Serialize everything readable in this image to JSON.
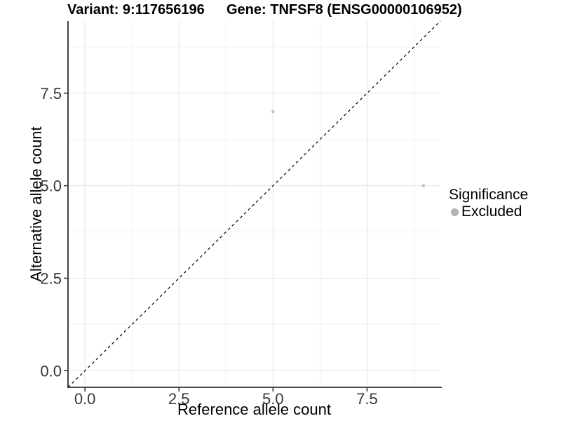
{
  "figure": {
    "titles": {
      "variant": "Variant: 9:117656196",
      "gene": "Gene: TNFSF8 (ENSG00000106952)"
    }
  },
  "chart_data": {
    "type": "scatter",
    "title": "Variant: 9:117656196 | Gene: TNFSF8 (ENSG00000106952)",
    "xlabel": "Reference allele count",
    "ylabel": "Alternative allele count",
    "xlim": [
      -0.45,
      9.45
    ],
    "ylim": [
      -0.45,
      9.45
    ],
    "x_ticks": [
      0,
      2.5,
      5,
      7.5
    ],
    "x_tick_labels": [
      "0.0",
      "2.5",
      "5.0",
      "7.5"
    ],
    "y_ticks": [
      0,
      2.5,
      5,
      7.5
    ],
    "y_tick_labels": [
      "0.0",
      "2.5",
      "5.0",
      "7.5"
    ],
    "x_minor_gridlines": [
      1.25,
      3.75,
      6.25,
      8.75
    ],
    "y_minor_gridlines": [
      1.25,
      3.75,
      6.25,
      8.75
    ],
    "grid": "major+minor",
    "series": [
      {
        "name": "Excluded",
        "color": "#c2c2c2",
        "marker": "circle",
        "marker_size": 2.2,
        "points": [
          {
            "x": 5,
            "y": 7
          },
          {
            "x": 9,
            "y": 5
          }
        ]
      }
    ],
    "reference_line": {
      "kind": "identity y=x",
      "style": "dashed",
      "color": "#000000"
    },
    "legend": {
      "title": "Significance",
      "position": "right",
      "items": [
        {
          "label": "Excluded",
          "color": "#b3b3b3",
          "marker": "circle"
        }
      ]
    },
    "style": {
      "background": "#ffffff",
      "grid_major_color": "#e4e4e4",
      "grid_minor_color": "#f2f2f2",
      "axis_line_color": "#2e2e2e",
      "tick_color": "#2e2e2e",
      "tick_label_color": "#383838",
      "title_color": "#000000"
    }
  }
}
